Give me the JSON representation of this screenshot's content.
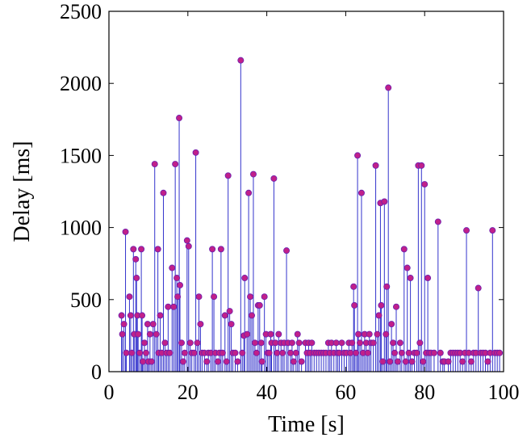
{
  "chart_data": {
    "type": "stem",
    "title": "",
    "xlabel": "Time [s]",
    "ylabel": "Delay [ms]",
    "xlim": [
      0,
      100
    ],
    "ylim": [
      0,
      2500
    ],
    "xticks": [
      0,
      20,
      40,
      60,
      80,
      100
    ],
    "yticks": [
      0,
      500,
      1000,
      1500,
      2000,
      2500
    ],
    "grid": false,
    "legend": "none",
    "colors": {
      "stem": "#3333cc",
      "marker": "#c0208a",
      "marker_edge": "#6a1fb0",
      "axes": "#000000"
    },
    "series": [
      {
        "points": [
          [
            3.2,
            390
          ],
          [
            3.4,
            260
          ],
          [
            3.8,
            330
          ],
          [
            4.2,
            970
          ],
          [
            4.4,
            130
          ],
          [
            5.2,
            520
          ],
          [
            5.5,
            390
          ],
          [
            5.8,
            130
          ],
          [
            6.2,
            850
          ],
          [
            6.4,
            260
          ],
          [
            6.8,
            780
          ],
          [
            7.0,
            650
          ],
          [
            7.2,
            390
          ],
          [
            7.4,
            260
          ],
          [
            7.8,
            130
          ],
          [
            8.2,
            850
          ],
          [
            8.4,
            390
          ],
          [
            8.6,
            70
          ],
          [
            9.0,
            200
          ],
          [
            9.4,
            130
          ],
          [
            9.8,
            330
          ],
          [
            10.0,
            70
          ],
          [
            10.4,
            260
          ],
          [
            10.8,
            70
          ],
          [
            11.2,
            330
          ],
          [
            11.6,
            1440
          ],
          [
            12.0,
            260
          ],
          [
            12.4,
            850
          ],
          [
            12.6,
            130
          ],
          [
            13.0,
            390
          ],
          [
            13.4,
            130
          ],
          [
            13.8,
            1240
          ],
          [
            14.2,
            200
          ],
          [
            14.6,
            130
          ],
          [
            15.0,
            450
          ],
          [
            15.4,
            130
          ],
          [
            16.0,
            720
          ],
          [
            16.4,
            450
          ],
          [
            16.8,
            1440
          ],
          [
            17.2,
            650
          ],
          [
            17.4,
            520
          ],
          [
            17.8,
            1760
          ],
          [
            18.0,
            600
          ],
          [
            18.4,
            200
          ],
          [
            18.8,
            70
          ],
          [
            19.2,
            130
          ],
          [
            19.8,
            910
          ],
          [
            20.2,
            870
          ],
          [
            20.6,
            200
          ],
          [
            21.0,
            130
          ],
          [
            21.6,
            130
          ],
          [
            22.0,
            1520
          ],
          [
            22.4,
            200
          ],
          [
            22.8,
            520
          ],
          [
            23.2,
            330
          ],
          [
            23.6,
            130
          ],
          [
            24.2,
            130
          ],
          [
            24.8,
            70
          ],
          [
            25.2,
            130
          ],
          [
            25.8,
            130
          ],
          [
            26.2,
            850
          ],
          [
            26.6,
            520
          ],
          [
            27.0,
            130
          ],
          [
            27.6,
            70
          ],
          [
            28.0,
            130
          ],
          [
            28.4,
            850
          ],
          [
            28.8,
            130
          ],
          [
            29.4,
            390
          ],
          [
            29.8,
            70
          ],
          [
            30.2,
            1360
          ],
          [
            30.6,
            420
          ],
          [
            31.0,
            330
          ],
          [
            31.4,
            130
          ],
          [
            32.0,
            130
          ],
          [
            32.6,
            70
          ],
          [
            33.4,
            2160
          ],
          [
            33.8,
            130
          ],
          [
            34.2,
            250
          ],
          [
            34.4,
            650
          ],
          [
            35.0,
            260
          ],
          [
            35.4,
            1240
          ],
          [
            35.8,
            520
          ],
          [
            36.2,
            390
          ],
          [
            36.6,
            1370
          ],
          [
            37.0,
            200
          ],
          [
            37.4,
            130
          ],
          [
            37.8,
            460
          ],
          [
            38.2,
            460
          ],
          [
            38.6,
            200
          ],
          [
            38.8,
            70
          ],
          [
            39.4,
            520
          ],
          [
            39.8,
            260
          ],
          [
            40.2,
            130
          ],
          [
            40.6,
            130
          ],
          [
            41.0,
            260
          ],
          [
            41.2,
            200
          ],
          [
            41.8,
            1340
          ],
          [
            42.2,
            200
          ],
          [
            42.6,
            130
          ],
          [
            43.0,
            260
          ],
          [
            43.6,
            200
          ],
          [
            44.0,
            130
          ],
          [
            44.4,
            200
          ],
          [
            45.0,
            840
          ],
          [
            45.4,
            200
          ],
          [
            46.0,
            130
          ],
          [
            46.4,
            200
          ],
          [
            46.8,
            70
          ],
          [
            47.4,
            130
          ],
          [
            47.8,
            260
          ],
          [
            48.2,
            200
          ],
          [
            48.8,
            70
          ],
          [
            49.8,
            200
          ],
          [
            50.2,
            130
          ],
          [
            50.6,
            200
          ],
          [
            51.0,
            130
          ],
          [
            51.4,
            200
          ],
          [
            52.0,
            130
          ],
          [
            52.6,
            130
          ],
          [
            53.2,
            130
          ],
          [
            53.8,
            130
          ],
          [
            54.4,
            130
          ],
          [
            55.0,
            130
          ],
          [
            55.6,
            200
          ],
          [
            56.0,
            130
          ],
          [
            56.4,
            200
          ],
          [
            57.0,
            130
          ],
          [
            57.6,
            200
          ],
          [
            58.0,
            130
          ],
          [
            58.4,
            130
          ],
          [
            59.0,
            200
          ],
          [
            59.6,
            130
          ],
          [
            60.2,
            130
          ],
          [
            60.8,
            200
          ],
          [
            61.2,
            130
          ],
          [
            61.6,
            200
          ],
          [
            62.0,
            590
          ],
          [
            62.2,
            460
          ],
          [
            62.6,
            130
          ],
          [
            63.0,
            1500
          ],
          [
            63.2,
            260
          ],
          [
            63.6,
            200
          ],
          [
            64.0,
            1240
          ],
          [
            64.4,
            130
          ],
          [
            64.8,
            260
          ],
          [
            65.2,
            200
          ],
          [
            65.6,
            130
          ],
          [
            66.0,
            260
          ],
          [
            66.4,
            200
          ],
          [
            67.0,
            200
          ],
          [
            67.6,
            1430
          ],
          [
            68.0,
            260
          ],
          [
            68.4,
            390
          ],
          [
            68.8,
            1170
          ],
          [
            69.0,
            460
          ],
          [
            69.4,
            70
          ],
          [
            69.8,
            1180
          ],
          [
            70.2,
            260
          ],
          [
            70.4,
            590
          ],
          [
            70.8,
            1970
          ],
          [
            71.2,
            70
          ],
          [
            71.6,
            330
          ],
          [
            72.0,
            200
          ],
          [
            72.4,
            130
          ],
          [
            72.8,
            450
          ],
          [
            73.2,
            70
          ],
          [
            73.8,
            200
          ],
          [
            74.2,
            130
          ],
          [
            74.8,
            850
          ],
          [
            75.2,
            70
          ],
          [
            75.6,
            720
          ],
          [
            76.0,
            130
          ],
          [
            76.4,
            650
          ],
          [
            76.8,
            70
          ],
          [
            77.4,
            130
          ],
          [
            78.0,
            130
          ],
          [
            78.4,
            1430
          ],
          [
            78.8,
            200
          ],
          [
            79.2,
            1430
          ],
          [
            79.6,
            70
          ],
          [
            80.0,
            1300
          ],
          [
            80.4,
            130
          ],
          [
            80.8,
            650
          ],
          [
            81.2,
            130
          ],
          [
            81.6,
            130
          ],
          [
            82.4,
            130
          ],
          [
            83.4,
            1040
          ],
          [
            84.0,
            130
          ],
          [
            84.6,
            70
          ],
          [
            85.0,
            70
          ],
          [
            86.0,
            70
          ],
          [
            86.6,
            130
          ],
          [
            87.2,
            130
          ],
          [
            87.8,
            130
          ],
          [
            88.4,
            130
          ],
          [
            89.0,
            130
          ],
          [
            89.6,
            70
          ],
          [
            90.2,
            130
          ],
          [
            90.6,
            980
          ],
          [
            91.2,
            130
          ],
          [
            91.8,
            70
          ],
          [
            92.4,
            130
          ],
          [
            93.0,
            130
          ],
          [
            93.6,
            580
          ],
          [
            94.2,
            130
          ],
          [
            94.8,
            130
          ],
          [
            95.4,
            130
          ],
          [
            96.0,
            70
          ],
          [
            96.6,
            130
          ],
          [
            97.2,
            980
          ],
          [
            97.8,
            130
          ],
          [
            98.4,
            130
          ],
          [
            99.0,
            130
          ]
        ]
      }
    ]
  }
}
